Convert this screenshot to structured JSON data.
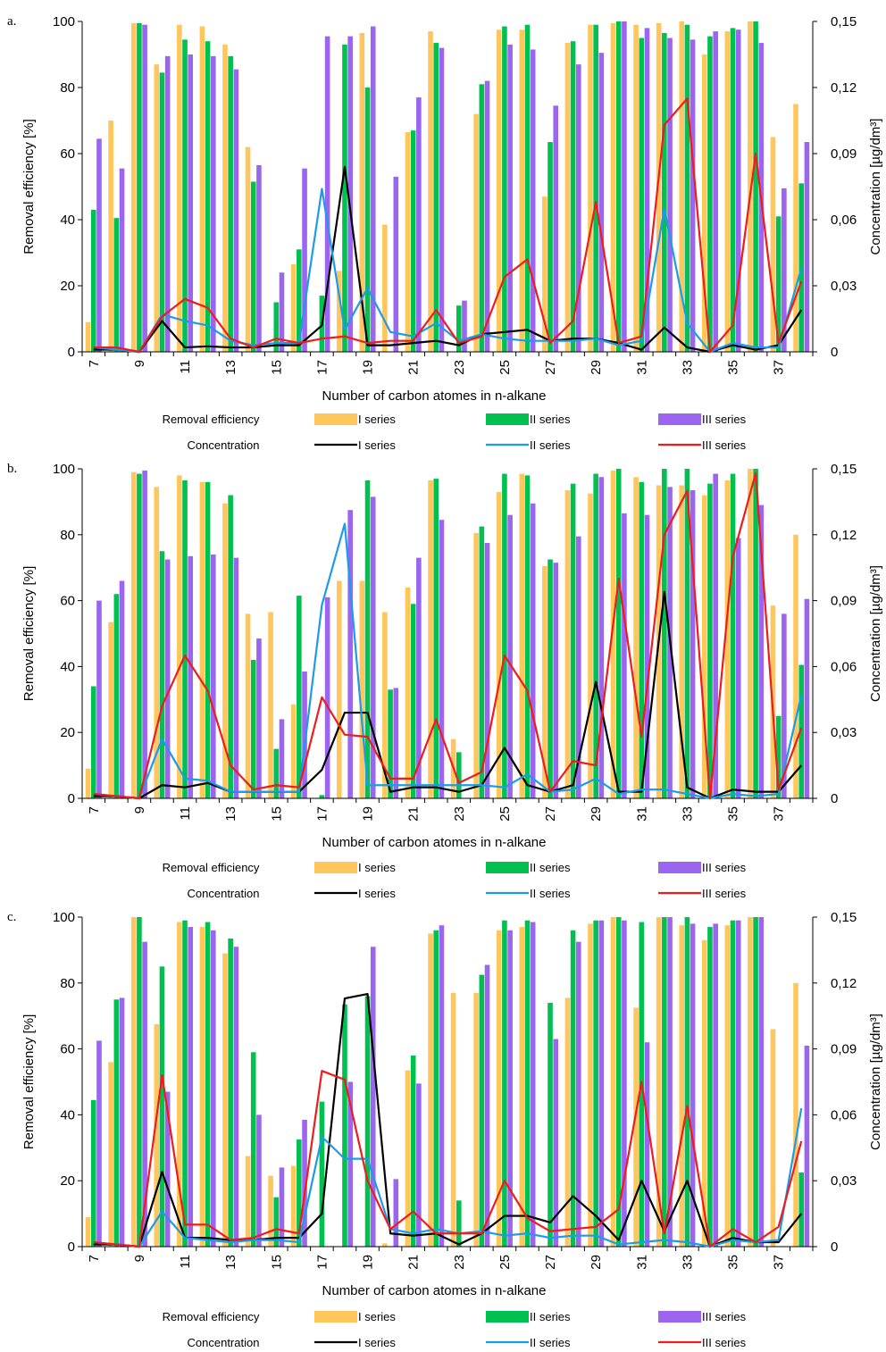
{
  "legend": {
    "row_titles": [
      "Removal efficiency",
      "Concentration"
    ],
    "series_names": [
      "I series",
      "II series",
      "III series"
    ]
  },
  "colors": {
    "bar_series": [
      "#FFC65C",
      "#00C050",
      "#9B65F0"
    ],
    "line_series": [
      "#000000",
      "#1E9BE8",
      "#EE1C1C"
    ]
  },
  "chart_data": [
    {
      "type": "bar",
      "panel_label": "a.",
      "xlabel": "Number of carbon atomes in n-alkane",
      "ylabel": "Removal efficiency [%]",
      "y2label": "Concentration [µg/dm³]",
      "ylim": [
        0,
        100
      ],
      "y2lim": [
        0,
        0.15
      ],
      "y_ticks": [
        "0",
        "20",
        "40",
        "60",
        "80",
        "100"
      ],
      "y2_ticks": [
        "0",
        "0,03",
        "0,06",
        "0,09",
        "0,12",
        "0,15"
      ],
      "x_ticks": [
        "7",
        "9",
        "11",
        "13",
        "15",
        "17",
        "19",
        "21",
        "23",
        "25",
        "27",
        "29",
        "31",
        "33",
        "35",
        "37"
      ],
      "categories": [
        7,
        8,
        9,
        10,
        11,
        12,
        13,
        14,
        15,
        16,
        17,
        18,
        19,
        20,
        21,
        22,
        23,
        24,
        25,
        26,
        27,
        28,
        29,
        30,
        31,
        32,
        33,
        34,
        35,
        36,
        37,
        38
      ],
      "bar_series": [
        {
          "name": "I series",
          "values": [
            9,
            70,
            99.5,
            87,
            99,
            98.5,
            93,
            62,
            0,
            26.5,
            0,
            24.5,
            96.5,
            38.5,
            66.5,
            97,
            0,
            72,
            97.5,
            97.5,
            47,
            93.5,
            99,
            99.5,
            99,
            99.5,
            100,
            90,
            97,
            100,
            65,
            75
          ]
        },
        {
          "name": "II series",
          "values": [
            43,
            40.5,
            99.5,
            84.5,
            94.5,
            94,
            89.5,
            51.5,
            15,
            31,
            17,
            93,
            80,
            0,
            67,
            93.5,
            14,
            81,
            98.5,
            99,
            63.5,
            94,
            99,
            100,
            95,
            96.5,
            99,
            95.5,
            98,
            100,
            41,
            51
          ]
        },
        {
          "name": "III series",
          "values": [
            64.5,
            55.5,
            99,
            89.5,
            90,
            89.5,
            85.5,
            56.5,
            24,
            55.5,
            95.5,
            95.5,
            98.5,
            53,
            77,
            92,
            15.5,
            82,
            93,
            91.5,
            74.5,
            87,
            90.5,
            100,
            98,
            95,
            94.5,
            97,
            97.5,
            93.5,
            49.5,
            63.5
          ]
        }
      ],
      "line_series": [
        {
          "name": "I series",
          "values": [
            0.001,
            0.001,
            0,
            0.014,
            0.002,
            0.0025,
            0.002,
            0.002,
            0.003,
            0.003,
            0.012,
            0.084,
            0.003,
            0.003,
            0.004,
            0.005,
            0.003,
            0.008,
            0.009,
            0.01,
            0.005,
            0.006,
            0.006,
            0.004,
            0.001,
            0.011,
            0.002,
            0,
            0.003,
            0.001,
            0.003,
            0.019
          ]
        },
        {
          "name": "II series",
          "values": [
            0.002,
            0.001,
            0,
            0.017,
            0.014,
            0.012,
            0.005,
            0.003,
            0.004,
            0.004,
            0.074,
            0.01,
            0.029,
            0.009,
            0.007,
            0.013,
            0.005,
            0.008,
            0.006,
            0.005,
            0.005,
            0.005,
            0.006,
            0.003,
            0.005,
            0.065,
            0.013,
            0,
            0.004,
            0.002,
            0.002,
            0.038
          ]
        },
        {
          "name": "III series",
          "values": [
            0.002,
            0.002,
            0,
            0.016,
            0.024,
            0.02,
            0.006,
            0.002,
            0.006,
            0.004,
            0.006,
            0.007,
            0.004,
            0.005,
            0.005,
            0.019,
            0.004,
            0.007,
            0.034,
            0.042,
            0.004,
            0.014,
            0.068,
            0.004,
            0.007,
            0.103,
            0.115,
            0,
            0.012,
            0.09,
            0.004,
            0.032
          ]
        }
      ]
    },
    {
      "type": "bar",
      "panel_label": "b.",
      "xlabel": "Number of carbon atomes in n-alkane",
      "ylabel": "Removal efficiency [%]",
      "y2label": "Concentration [µg/dm³]",
      "ylim": [
        0,
        100
      ],
      "y2lim": [
        0,
        0.15
      ],
      "y_ticks": [
        "0",
        "20",
        "40",
        "60",
        "80",
        "100"
      ],
      "y2_ticks": [
        "0",
        "0,03",
        "0,06",
        "0,09",
        "0,12",
        "0,15"
      ],
      "x_ticks": [
        "7",
        "9",
        "11",
        "13",
        "15",
        "17",
        "19",
        "21",
        "23",
        "25",
        "27",
        "29",
        "31",
        "33",
        "35",
        "37"
      ],
      "categories": [
        7,
        8,
        9,
        10,
        11,
        12,
        13,
        14,
        15,
        16,
        17,
        18,
        19,
        20,
        21,
        22,
        23,
        24,
        25,
        26,
        27,
        28,
        29,
        30,
        31,
        32,
        33,
        34,
        35,
        36,
        37,
        38
      ],
      "bar_series": [
        {
          "name": "I series",
          "values": [
            9,
            53.5,
            99,
            94.5,
            98,
            96,
            89.5,
            56,
            56.5,
            28.5,
            0,
            66,
            66,
            56.5,
            64,
            96.5,
            18,
            80.5,
            93,
            98.5,
            70.5,
            93.5,
            92.5,
            99.5,
            97.5,
            95,
            95,
            92,
            96.5,
            100,
            58.5,
            80
          ]
        },
        {
          "name": "II series",
          "values": [
            34,
            62,
            98.5,
            75,
            96.5,
            96,
            92,
            42,
            15,
            61.5,
            1,
            0,
            96.5,
            33,
            59,
            97,
            14,
            82.5,
            98.5,
            98,
            72.5,
            95.5,
            98.5,
            100,
            96,
            100,
            100,
            95.5,
            98.5,
            100,
            25,
            40.5
          ]
        },
        {
          "name": "III series",
          "values": [
            60,
            66,
            99.5,
            72.5,
            73.5,
            74,
            73,
            48.5,
            24,
            38.5,
            61,
            87.5,
            91.5,
            33.5,
            73,
            84.5,
            0,
            77.5,
            86,
            89.5,
            71.5,
            79.5,
            97.5,
            86.5,
            86,
            94.5,
            93.5,
            98.5,
            79,
            89,
            56,
            60.5
          ]
        }
      ],
      "line_series": [
        {
          "name": "I series",
          "values": [
            0.001,
            0.001,
            0,
            0.006,
            0.005,
            0.007,
            0.003,
            0.003,
            0.003,
            0.003,
            0.013,
            0.039,
            0.039,
            0.003,
            0.005,
            0.005,
            0.003,
            0.006,
            0.023,
            0.006,
            0.003,
            0.006,
            0.053,
            0.003,
            0.003,
            0.094,
            0.005,
            0,
            0.004,
            0.003,
            0.003,
            0.015
          ]
        },
        {
          "name": "II series",
          "values": [
            0.002,
            0.001,
            0,
            0.027,
            0.009,
            0.008,
            0.003,
            0.003,
            0.003,
            0.003,
            0.088,
            0.125,
            0.006,
            0.006,
            0.006,
            0.006,
            0.006,
            0.006,
            0.005,
            0.011,
            0.003,
            0.004,
            0.009,
            0.002,
            0.004,
            0.004,
            0.002,
            0,
            0.002,
            0.001,
            0.002,
            0.047
          ]
        },
        {
          "name": "III series",
          "values": [
            0.002,
            0.001,
            0,
            0.042,
            0.065,
            0.049,
            0.015,
            0.004,
            0.006,
            0.005,
            0.046,
            0.029,
            0.028,
            0.009,
            0.009,
            0.036,
            0.007,
            0.012,
            0.065,
            0.049,
            0.003,
            0.017,
            0.015,
            0.1,
            0.028,
            0.12,
            0.14,
            0,
            0.11,
            0.148,
            0.004,
            0.032
          ]
        }
      ]
    },
    {
      "type": "bar",
      "panel_label": "c.",
      "xlabel": "Number of carbon atomes in n-alkane",
      "ylabel": "Removal efficiency [%]",
      "y2label": "Concentration [µg/dm³]",
      "ylim": [
        0,
        100
      ],
      "y2lim": [
        0,
        0.15
      ],
      "y_ticks": [
        "0",
        "20",
        "40",
        "60",
        "80",
        "100"
      ],
      "y2_ticks": [
        "0",
        "0,03",
        "0,06",
        "0,09",
        "0,12",
        "0,15"
      ],
      "x_ticks": [
        "7",
        "9",
        "11",
        "13",
        "15",
        "17",
        "19",
        "21",
        "23",
        "25",
        "27",
        "29",
        "31",
        "33",
        "35",
        "37"
      ],
      "categories": [
        7,
        8,
        9,
        10,
        11,
        12,
        13,
        14,
        15,
        16,
        17,
        18,
        19,
        20,
        21,
        22,
        23,
        24,
        25,
        26,
        27,
        28,
        29,
        30,
        31,
        32,
        33,
        34,
        35,
        36,
        37,
        38
      ],
      "bar_series": [
        {
          "name": "I series",
          "values": [
            9,
            56,
            100,
            67.5,
            98.5,
            97,
            89,
            27.5,
            21.5,
            24.5,
            0,
            0,
            0,
            1,
            53.5,
            95,
            77,
            77,
            96,
            97,
            0,
            75.5,
            98,
            100,
            72.5,
            100,
            97.5,
            93,
            97.5,
            100,
            66,
            80
          ]
        },
        {
          "name": "II series",
          "values": [
            44.5,
            75,
            100,
            85,
            99,
            98.5,
            93.5,
            59,
            15,
            32.5,
            44,
            73.5,
            76,
            0,
            58,
            96,
            14,
            82.5,
            99,
            99,
            74,
            96,
            99,
            100,
            98.5,
            100,
            100,
            97,
            99,
            100,
            0,
            22.5
          ]
        },
        {
          "name": "III series",
          "values": [
            62.5,
            75.5,
            92.5,
            47,
            97,
            96,
            91,
            40,
            24,
            38.5,
            0,
            50,
            91,
            20.5,
            49.5,
            97.5,
            0,
            85.5,
            96,
            98.5,
            63,
            92.5,
            99,
            99,
            62,
            100,
            98,
            98,
            99,
            100,
            0,
            61
          ]
        }
      ],
      "line_series": [
        {
          "name": "I series",
          "values": [
            0.001,
            0.001,
            0,
            0.034,
            0.004,
            0.004,
            0.003,
            0.003,
            0.004,
            0.004,
            0.015,
            0.113,
            0.115,
            0.006,
            0.005,
            0.006,
            0.001,
            0.006,
            0.014,
            0.014,
            0.011,
            0.023,
            0.014,
            0.003,
            0.03,
            0.007,
            0.03,
            0,
            0.004,
            0.002,
            0.002,
            0.015
          ]
        },
        {
          "name": "II series",
          "values": [
            0.002,
            0.001,
            0,
            0.016,
            0.004,
            0.003,
            0.002,
            0.003,
            0.003,
            0.002,
            0.05,
            0.04,
            0.04,
            0.008,
            0.006,
            0.008,
            0.006,
            0.007,
            0.005,
            0.006,
            0.004,
            0.005,
            0.005,
            0.001,
            0.002,
            0.003,
            0.002,
            0,
            0.003,
            0.002,
            0.003,
            0.063
          ]
        },
        {
          "name": "III series",
          "values": [
            0.002,
            0.001,
            0,
            0.078,
            0.01,
            0.01,
            0.003,
            0.004,
            0.008,
            0.006,
            0.08,
            0.076,
            0.03,
            0.008,
            0.016,
            0.006,
            0.006,
            0.006,
            0.03,
            0.013,
            0.007,
            0.008,
            0.009,
            0.017,
            0.075,
            0.006,
            0.064,
            0,
            0.008,
            0.002,
            0.009,
            0.048
          ]
        }
      ]
    }
  ]
}
